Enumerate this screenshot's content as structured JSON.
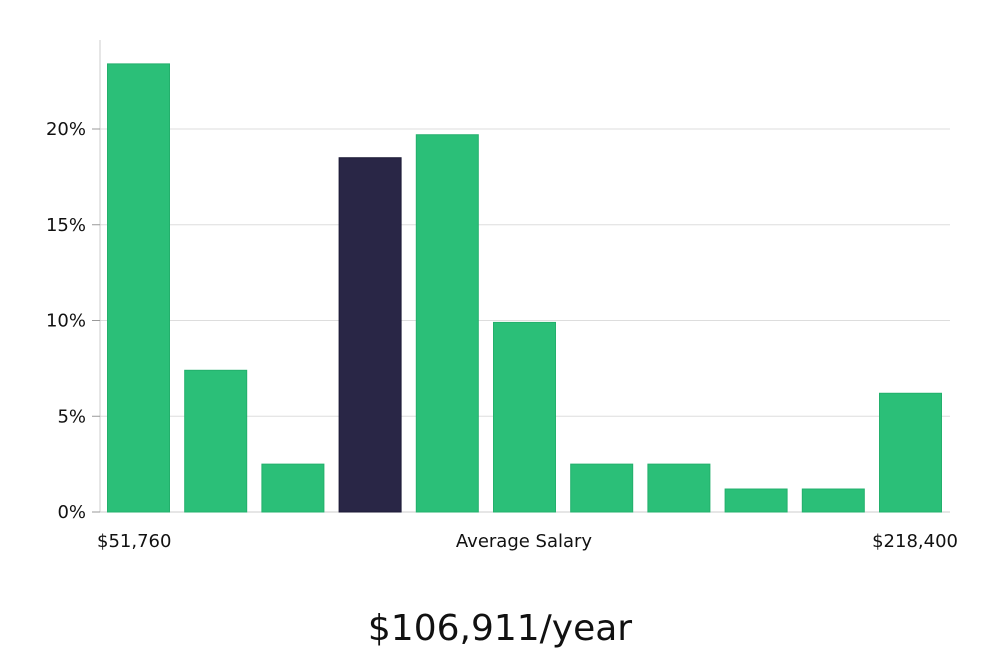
{
  "chart_data": {
    "type": "bar",
    "title": "",
    "xlabel": "Average Salary",
    "ylabel": "",
    "ylim": [
      0,
      24.5
    ],
    "yticks": [
      0,
      5,
      10,
      15,
      20
    ],
    "ytick_labels": [
      "0%",
      "5%",
      "10%",
      "15%",
      "20%"
    ],
    "x_range_labels": {
      "min": "$51,760",
      "max": "$218,400"
    },
    "values": [
      23.4,
      7.4,
      2.5,
      18.5,
      19.7,
      9.9,
      2.5,
      2.5,
      1.2,
      1.2,
      6.2
    ],
    "highlight_index": 3,
    "colors": {
      "bar": "#2bbf78",
      "highlight": "#292646",
      "grid": "#dddddd",
      "axis": "#cccccc"
    },
    "grid": true
  },
  "summary": {
    "average_salary": "$106,911/year"
  }
}
